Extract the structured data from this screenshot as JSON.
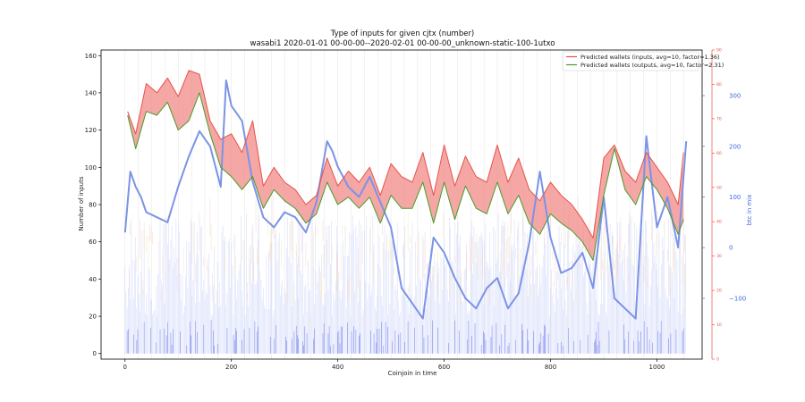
{
  "chart_data": {
    "type": "line",
    "title": "Type of inputs for given cjtx (number)",
    "subtitle": "wasabi1 2020-01-01 00-00-00--2020-02-01 00-00-00_unknown-static-100-1utxo",
    "xlabel": "Coinjoin in time",
    "ylabel": "Number of inputs",
    "ylabel_right": "btc in mix",
    "xlim": [
      -45,
      1085
    ],
    "ylim": [
      -3,
      163
    ],
    "right_outer_ylim": [
      -220,
      390
    ],
    "right_inner_ylim": [
      0,
      90
    ],
    "x_ticks": [
      0,
      200,
      400,
      600,
      800,
      1000
    ],
    "y_ticks": [
      0,
      20,
      40,
      60,
      80,
      100,
      120,
      140,
      160
    ],
    "right_outer_ticks": [
      -100,
      0,
      100,
      200,
      300
    ],
    "right_inner_ticks": [
      0,
      10,
      20,
      30,
      40,
      50,
      60,
      70,
      80,
      90
    ],
    "grid": "vertical-lines",
    "legend_position": "top-right",
    "colors": {
      "inputs": "#e8524a",
      "outputs": "#4a9a2a",
      "fill": "#f08a86",
      "btc": "#7b93e6",
      "bars": "#b8c4f8",
      "right_inner_axis": "#e8524a",
      "right_outer_axis": "#4169e1"
    },
    "series": [
      {
        "name": "Predicted wallets (inputs, avg=10, factor=1.36)",
        "axis": "left",
        "x": [
          5,
          20,
          40,
          60,
          80,
          100,
          120,
          140,
          160,
          180,
          200,
          220,
          240,
          260,
          280,
          300,
          320,
          340,
          360,
          380,
          400,
          420,
          440,
          460,
          480,
          500,
          520,
          540,
          560,
          580,
          600,
          620,
          640,
          660,
          680,
          700,
          720,
          740,
          760,
          780,
          800,
          820,
          840,
          860,
          880,
          900,
          920,
          940,
          960,
          980,
          1000,
          1020,
          1040,
          1050
        ],
        "values": [
          130,
          118,
          145,
          140,
          148,
          138,
          152,
          150,
          125,
          115,
          118,
          108,
          125,
          90,
          100,
          92,
          88,
          80,
          85,
          105,
          90,
          98,
          92,
          100,
          85,
          102,
          95,
          92,
          108,
          85,
          112,
          90,
          106,
          95,
          92,
          112,
          92,
          105,
          88,
          82,
          92,
          85,
          80,
          72,
          62,
          105,
          112,
          98,
          92,
          108,
          100,
          92,
          80,
          108
        ]
      },
      {
        "name": "Predicted wallets (outputs, avg=10, factor=2.31)",
        "axis": "left",
        "x": [
          5,
          20,
          40,
          60,
          80,
          100,
          120,
          140,
          160,
          180,
          200,
          220,
          240,
          260,
          280,
          300,
          320,
          340,
          360,
          380,
          400,
          420,
          440,
          460,
          480,
          500,
          520,
          540,
          560,
          580,
          600,
          620,
          640,
          660,
          680,
          700,
          720,
          740,
          760,
          780,
          800,
          820,
          840,
          860,
          880,
          900,
          920,
          940,
          960,
          980,
          1000,
          1020,
          1040,
          1050
        ],
        "values": [
          128,
          110,
          130,
          128,
          135,
          120,
          125,
          140,
          118,
          100,
          95,
          88,
          95,
          78,
          88,
          82,
          78,
          70,
          75,
          92,
          80,
          84,
          78,
          84,
          70,
          85,
          78,
          78,
          92,
          70,
          92,
          72,
          90,
          78,
          75,
          92,
          75,
          85,
          70,
          64,
          75,
          70,
          66,
          60,
          50,
          85,
          110,
          88,
          80,
          95,
          88,
          78,
          64,
          72
        ]
      },
      {
        "name": "btc in mix",
        "axis": "right",
        "x": [
          0,
          10,
          20,
          30,
          40,
          60,
          80,
          100,
          120,
          140,
          160,
          180,
          190,
          200,
          220,
          240,
          260,
          280,
          300,
          320,
          340,
          360,
          380,
          390,
          400,
          420,
          440,
          460,
          480,
          500,
          520,
          540,
          560,
          580,
          600,
          620,
          640,
          660,
          680,
          700,
          720,
          740,
          760,
          780,
          800,
          820,
          840,
          860,
          880,
          900,
          920,
          940,
          960,
          980,
          1000,
          1020,
          1040,
          1050,
          1055
        ],
        "values": [
          30,
          150,
          120,
          100,
          70,
          60,
          50,
          120,
          180,
          230,
          200,
          120,
          330,
          280,
          250,
          130,
          60,
          40,
          70,
          60,
          30,
          90,
          210,
          190,
          160,
          120,
          100,
          140,
          90,
          40,
          -80,
          -110,
          -140,
          20,
          -10,
          -60,
          -100,
          -120,
          -80,
          -60,
          -120,
          -90,
          10,
          150,
          20,
          -50,
          -40,
          -10,
          -80,
          100,
          -100,
          -120,
          -140,
          220,
          40,
          100,
          0,
          140,
          210
        ]
      }
    ]
  }
}
